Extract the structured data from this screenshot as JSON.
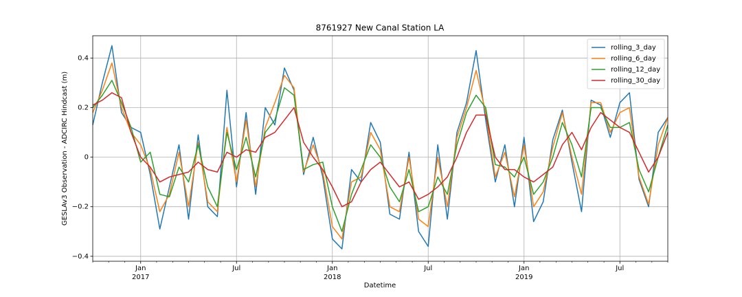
{
  "chart_data": {
    "type": "line",
    "title": "8761927 New Canal Station LA",
    "xlabel": "Datetime",
    "ylabel": "GESLAv3 Observation - ADCIRC Hindcast (m)",
    "x": [
      2016.75,
      2016.8,
      2016.85,
      2016.9,
      2016.95,
      2017.0,
      2017.05,
      2017.1,
      2017.15,
      2017.2,
      2017.25,
      2017.3,
      2017.35,
      2017.4,
      2017.45,
      2017.5,
      2017.55,
      2017.6,
      2017.65,
      2017.7,
      2017.75,
      2017.8,
      2017.85,
      2017.9,
      2017.95,
      2018.0,
      2018.05,
      2018.1,
      2018.15,
      2018.2,
      2018.25,
      2018.3,
      2018.35,
      2018.4,
      2018.45,
      2018.5,
      2018.55,
      2018.6,
      2018.65,
      2018.7,
      2018.75,
      2018.8,
      2018.85,
      2018.9,
      2018.95,
      2019.0,
      2019.05,
      2019.1,
      2019.15,
      2019.2,
      2019.25,
      2019.3,
      2019.35,
      2019.4,
      2019.45,
      2019.5,
      2019.55,
      2019.6,
      2019.65,
      2019.7,
      2019.75
    ],
    "series": [
      {
        "name": "rolling_3_day",
        "color": "#1f77b4",
        "values": [
          0.13,
          0.3,
          0.45,
          0.18,
          0.12,
          0.1,
          -0.07,
          -0.29,
          -0.12,
          0.05,
          -0.25,
          0.09,
          -0.2,
          -0.24,
          0.27,
          -0.12,
          0.18,
          -0.15,
          0.2,
          0.13,
          0.36,
          0.27,
          -0.07,
          0.08,
          -0.08,
          -0.33,
          -0.37,
          -0.05,
          -0.1,
          0.14,
          0.06,
          -0.23,
          -0.25,
          0.02,
          -0.3,
          -0.36,
          0.05,
          -0.25,
          0.1,
          0.22,
          0.43,
          0.15,
          -0.1,
          0.05,
          -0.2,
          0.08,
          -0.26,
          -0.18,
          0.07,
          0.19,
          -0.02,
          -0.22,
          0.23,
          0.21,
          0.08,
          0.22,
          0.26,
          -0.09,
          -0.2,
          0.1,
          0.16
        ]
      },
      {
        "name": "rolling_6_day",
        "color": "#ff7f0e",
        "values": [
          0.18,
          0.27,
          0.38,
          0.2,
          0.1,
          0.05,
          -0.05,
          -0.22,
          -0.15,
          0.02,
          -0.2,
          0.06,
          -0.18,
          -0.22,
          0.12,
          -0.1,
          0.15,
          -0.12,
          0.12,
          0.22,
          0.33,
          0.28,
          -0.06,
          0.05,
          -0.06,
          -0.28,
          -0.33,
          -0.1,
          -0.08,
          0.1,
          0.03,
          -0.2,
          -0.22,
          0.0,
          -0.25,
          -0.28,
          0.0,
          -0.2,
          0.08,
          0.2,
          0.35,
          0.18,
          -0.08,
          0.02,
          -0.16,
          0.05,
          -0.2,
          -0.14,
          0.04,
          0.18,
          0.0,
          -0.15,
          0.22,
          0.22,
          0.1,
          0.18,
          0.2,
          -0.08,
          -0.19,
          0.05,
          0.16
        ]
      },
      {
        "name": "rolling_12_day",
        "color": "#2ca02c",
        "values": [
          0.2,
          0.25,
          0.31,
          0.22,
          0.12,
          -0.02,
          0.02,
          -0.15,
          -0.16,
          -0.04,
          -0.1,
          0.05,
          -0.12,
          -0.2,
          0.1,
          -0.05,
          0.08,
          -0.08,
          0.1,
          0.15,
          0.28,
          0.25,
          -0.05,
          -0.03,
          -0.02,
          -0.2,
          -0.3,
          -0.15,
          -0.05,
          0.05,
          0.0,
          -0.12,
          -0.18,
          -0.05,
          -0.22,
          -0.2,
          -0.08,
          -0.15,
          0.05,
          0.18,
          0.25,
          0.2,
          -0.03,
          -0.04,
          -0.08,
          0.0,
          -0.15,
          -0.1,
          0.0,
          0.14,
          0.05,
          -0.08,
          0.2,
          0.2,
          0.12,
          0.12,
          0.14,
          -0.05,
          -0.14,
          0.0,
          0.13
        ]
      },
      {
        "name": "rolling_30_day",
        "color": "#d62728",
        "values": [
          0.21,
          0.23,
          0.26,
          0.24,
          0.1,
          0.0,
          -0.04,
          -0.1,
          -0.08,
          -0.07,
          -0.06,
          -0.02,
          -0.05,
          -0.06,
          0.02,
          0.0,
          0.03,
          0.02,
          0.08,
          0.1,
          0.15,
          0.2,
          0.06,
          0.0,
          -0.05,
          -0.12,
          -0.2,
          -0.18,
          -0.1,
          -0.05,
          -0.02,
          -0.07,
          -0.12,
          -0.1,
          -0.17,
          -0.15,
          -0.12,
          -0.08,
          0.0,
          0.1,
          0.17,
          0.17,
          0.0,
          -0.05,
          -0.05,
          -0.08,
          -0.1,
          -0.07,
          -0.04,
          0.05,
          0.1,
          0.03,
          0.12,
          0.18,
          0.15,
          0.12,
          0.1,
          0.02,
          -0.06,
          0.0,
          0.1
        ]
      }
    ],
    "xlim": [
      2016.75,
      2019.75
    ],
    "xticks": [
      {
        "value": 2017,
        "label": "Jan\n2017"
      },
      {
        "value": 2017.5,
        "label": "Jul"
      },
      {
        "value": 2018,
        "label": "Jan\n2018"
      },
      {
        "value": 2018.5,
        "label": "Jul"
      },
      {
        "value": 2019,
        "label": "Jan\n2019"
      },
      {
        "value": 2019.5,
        "label": "Jul"
      }
    ],
    "xticks_minor": [
      2016.75,
      2016.833,
      2016.917,
      2017.083,
      2017.167,
      2017.25,
      2017.333,
      2017.417,
      2017.583,
      2017.667,
      2017.75,
      2017.833,
      2017.917,
      2018.083,
      2018.167,
      2018.25,
      2018.333,
      2018.417,
      2018.583,
      2018.667,
      2018.75,
      2018.833,
      2018.917,
      2019.083,
      2019.167,
      2019.25,
      2019.333,
      2019.417,
      2019.583,
      2019.667,
      2019.75
    ],
    "ylim": [
      -0.42,
      0.49
    ],
    "yticks": [
      {
        "value": -0.4,
        "label": "−0.4"
      },
      {
        "value": -0.2,
        "label": "−0.2"
      },
      0.0,
      0.2,
      0.4
    ],
    "grid": true,
    "legend": "upper right"
  }
}
